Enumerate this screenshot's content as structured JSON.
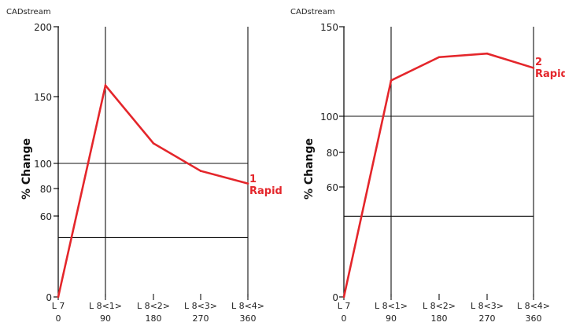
{
  "chart_data": [
    {
      "type": "line",
      "source": "CADstream",
      "ylabel": "% Change",
      "xlabel": "",
      "x": [
        0,
        90,
        180,
        270,
        360
      ],
      "xticks": [
        {
          "top": "L 7",
          "bottom": "0"
        },
        {
          "top": "L 8<1>",
          "bottom": "90"
        },
        {
          "top": "L 8<2>",
          "bottom": "180"
        },
        {
          "top": "L 8<3>",
          "bottom": "270"
        },
        {
          "top": "L 8<4>",
          "bottom": "360"
        }
      ],
      "yticks": [
        {
          "value": 0,
          "label": "0"
        },
        {
          "value": 60,
          "label": "60"
        },
        {
          "value": 80,
          "label": "80"
        },
        {
          "value": 100,
          "label": "100"
        },
        {
          "value": 150,
          "label": "150"
        },
        {
          "value": 200,
          "label": "200"
        }
      ],
      "hlines": [
        44,
        100
      ],
      "vlines": [
        90,
        360
      ],
      "ylim": [
        0,
        200
      ],
      "series": [
        {
          "values": [
            0,
            158,
            115,
            94,
            84
          ],
          "label_lines": [
            "1",
            "Rapid"
          ],
          "color": "#e4262b"
        }
      ]
    },
    {
      "type": "line",
      "source": "CADstream",
      "ylabel": "% Change",
      "xlabel": "",
      "x": [
        0,
        90,
        180,
        270,
        360
      ],
      "xticks": [
        {
          "top": "L 7",
          "bottom": "0"
        },
        {
          "top": "L 8<1>",
          "bottom": "90"
        },
        {
          "top": "L 8<2>",
          "bottom": "180"
        },
        {
          "top": "L 8<3>",
          "bottom": "270"
        },
        {
          "top": "L 8<4>",
          "bottom": "360"
        }
      ],
      "yticks": [
        {
          "value": 0,
          "label": "0"
        },
        {
          "value": 60,
          "label": "60"
        },
        {
          "value": 80,
          "label": "80"
        },
        {
          "value": 100,
          "label": "100"
        },
        {
          "value": 150,
          "label": "150"
        }
      ],
      "hlines": [
        44,
        100
      ],
      "vlines": [
        90,
        360
      ],
      "ylim": [
        0,
        150
      ],
      "series": [
        {
          "values": [
            0,
            120,
            133,
            135,
            127
          ],
          "label_lines": [
            "2",
            "Rapid"
          ],
          "color": "#e4262b"
        }
      ]
    }
  ]
}
